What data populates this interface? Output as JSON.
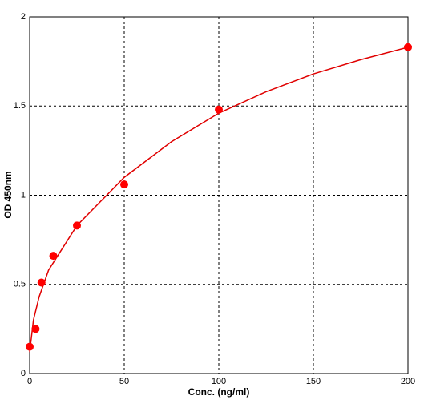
{
  "chart_data": {
    "type": "scatter",
    "xlabel": "Conc. (ng/ml)",
    "ylabel": "OD  450nm",
    "points": {
      "x": [
        0,
        3.125,
        6.25,
        12.5,
        25,
        50,
        100,
        200
      ],
      "y": [
        0.15,
        0.25,
        0.51,
        0.66,
        0.83,
        1.06,
        1.48,
        1.83
      ],
      "color": "#ff0000"
    },
    "curve": {
      "x": [
        0,
        2,
        5,
        10,
        25,
        50,
        75,
        100,
        125,
        150,
        175,
        200
      ],
      "y": [
        0.12,
        0.3,
        0.43,
        0.58,
        0.83,
        1.1,
        1.3,
        1.46,
        1.58,
        1.68,
        1.76,
        1.83
      ],
      "color": "#e00000"
    },
    "xlim": [
      0,
      200
    ],
    "ylim": [
      0,
      2
    ],
    "xticks": [
      0,
      50,
      100,
      150,
      200
    ],
    "yticks": [
      0,
      0.5,
      1,
      1.5,
      2
    ],
    "grid": true
  }
}
